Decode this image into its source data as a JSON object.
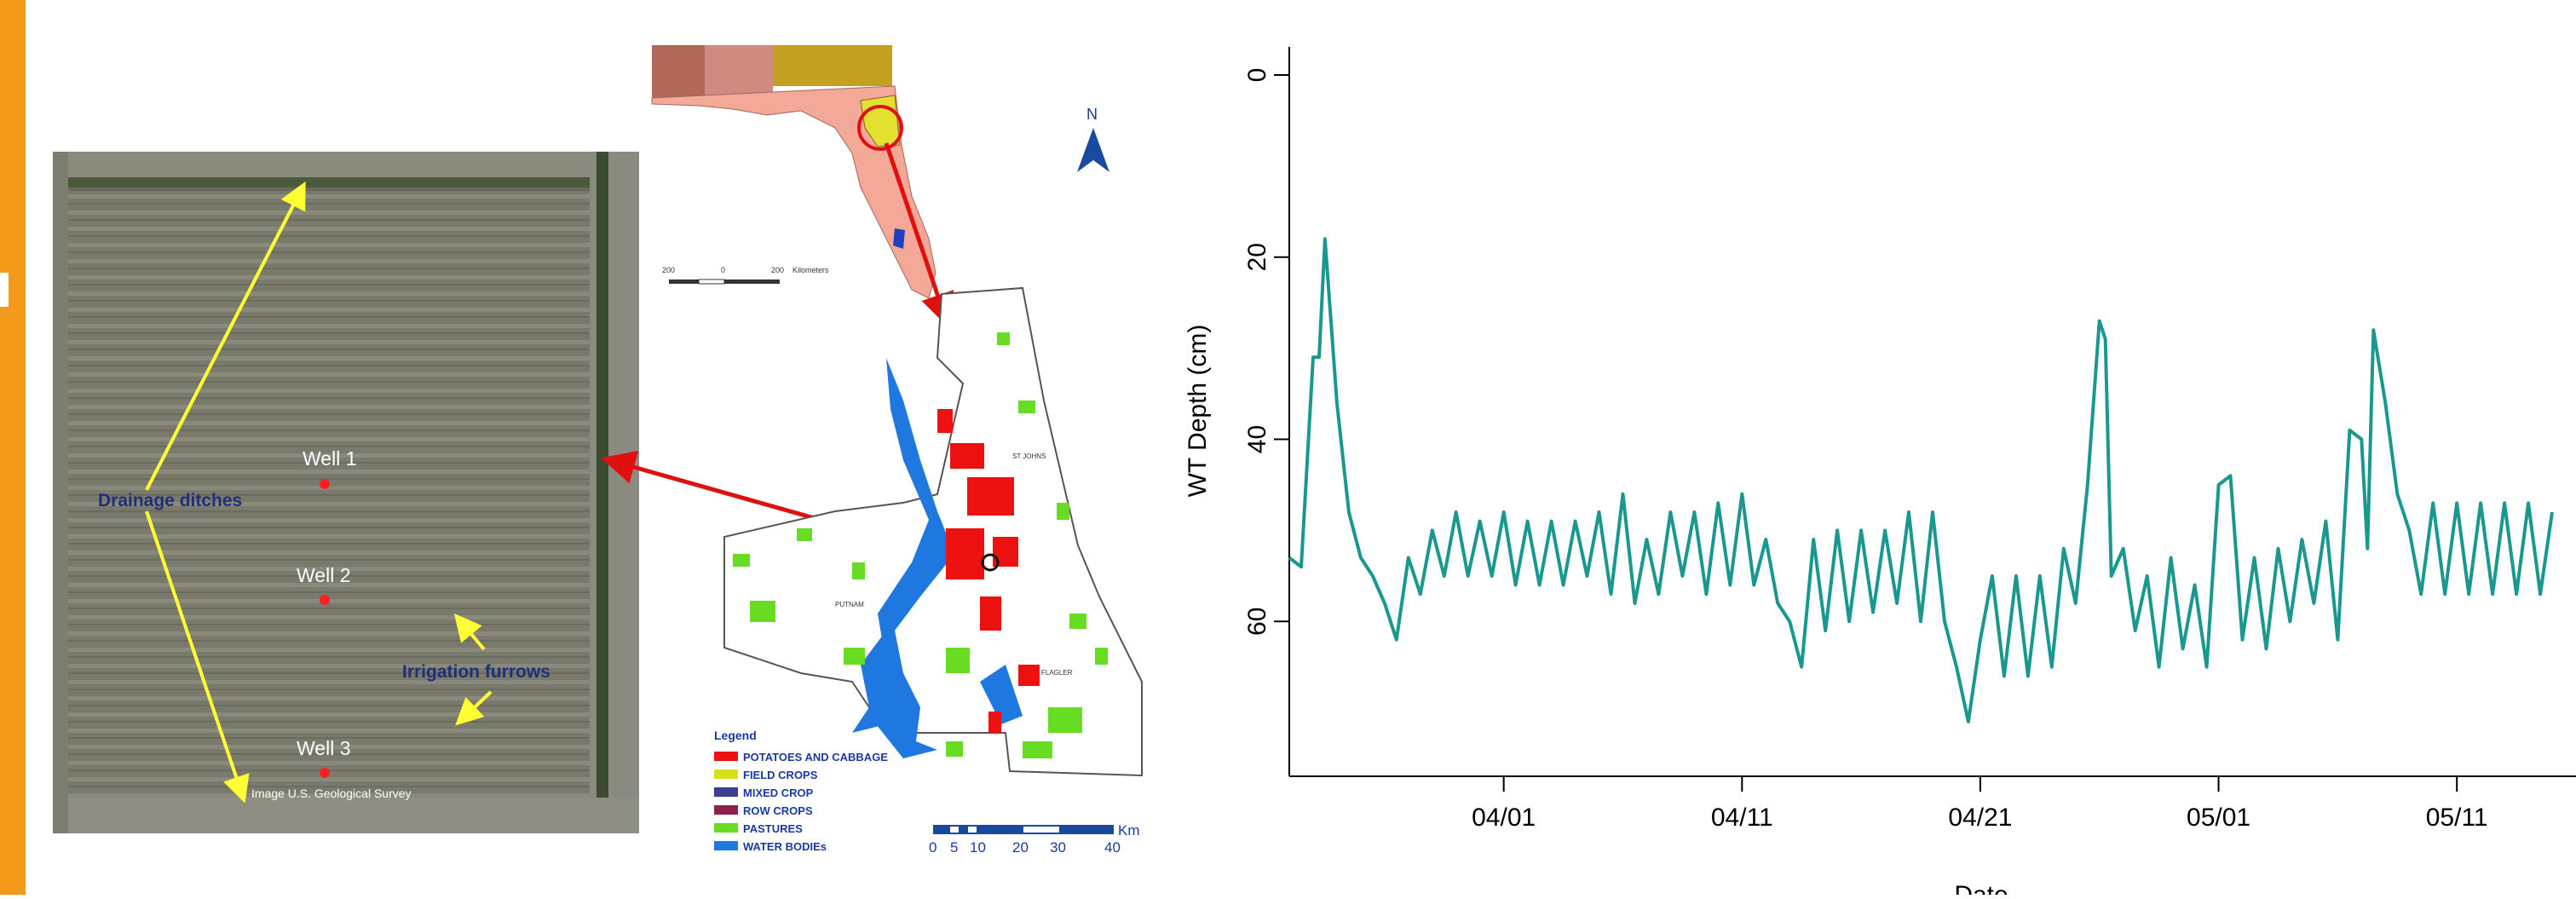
{
  "colors": {
    "accent_bar": "#f39a1a",
    "series_line": "#1a9890",
    "arrow_red": "#e01010",
    "arrow_yellow": "#ffff33",
    "annotation_navy": "#1f2f7a",
    "well_dot": "#ff2020"
  },
  "aerial": {
    "wells": [
      "Well 1",
      "Well 2",
      "Well 3"
    ],
    "drainage_label": "Drainage ditches",
    "irrigation_label": "Irrigation furrows",
    "credit": "Image U.S. Geological Survey"
  },
  "map": {
    "north_label": "N",
    "state_scale_ticks": [
      "200",
      "0",
      "200"
    ],
    "state_scale_unit": "Kilometers",
    "county_labels": [
      "ST JOHNS",
      "PUTNAM",
      "FLAGLER"
    ],
    "legend_title": "Legend",
    "legend_items": [
      {
        "label": "POTATOES AND CABBAGE",
        "color": "#ee1111"
      },
      {
        "label": "FIELD CROPS",
        "color": "#d8e01a"
      },
      {
        "label": "MIXED CROP",
        "color": "#3b3f8f"
      },
      {
        "label": "ROW CROPS",
        "color": "#8e2050"
      },
      {
        "label": "PASTURES",
        "color": "#66dd22"
      },
      {
        "label": "WATER BODIEs",
        "color": "#1e78e0"
      }
    ],
    "scale_ticks": [
      "0",
      "5",
      "10",
      "20",
      "30",
      "40"
    ],
    "scale_unit": "Km"
  },
  "chart_data": {
    "type": "line",
    "title": "",
    "xlabel": "Date",
    "ylabel": "WT Depth (cm)",
    "x_range": [
      "2010-03-23",
      "2010-05-15"
    ],
    "x_ticks": [
      "04/01",
      "04/11",
      "04/21",
      "05/01",
      "05/11"
    ],
    "x_tick_dates": [
      "2010-04-01",
      "2010-04-11",
      "2010-04-21",
      "2010-05-01",
      "2010-05-11"
    ],
    "ylim": [
      0,
      77
    ],
    "y_inverted": true,
    "y_ticks": [
      0,
      20,
      40,
      60
    ],
    "grid": false,
    "series": [
      {
        "x": [
          "2010-03-23T00:00",
          "2010-03-23T12:00",
          "2010-03-24T00:00",
          "2010-03-24T06:00",
          "2010-03-24T12:00",
          "2010-03-25T00:00",
          "2010-03-25T06:00",
          "2010-03-25T12:00",
          "2010-03-26T00:00",
          "2010-03-26T12:00",
          "2010-03-27T00:00",
          "2010-03-27T12:00",
          "2010-03-28T00:00",
          "2010-03-28T12:00",
          "2010-03-29T00:00",
          "2010-03-29T12:00",
          "2010-03-30T00:00",
          "2010-03-30T12:00",
          "2010-03-31T00:00",
          "2010-03-31T12:00",
          "2010-04-01T00:00",
          "2010-04-01T12:00",
          "2010-04-02T00:00",
          "2010-04-02T12:00",
          "2010-04-03T00:00",
          "2010-04-03T12:00",
          "2010-04-04T00:00",
          "2010-04-04T12:00",
          "2010-04-05T00:00",
          "2010-04-05T12:00",
          "2010-04-06T00:00",
          "2010-04-06T12:00",
          "2010-04-07T00:00",
          "2010-04-07T12:00",
          "2010-04-08T00:00",
          "2010-04-08T12:00",
          "2010-04-09T00:00",
          "2010-04-09T12:00",
          "2010-04-10T00:00",
          "2010-04-10T12:00",
          "2010-04-11T00:00",
          "2010-04-11T12:00",
          "2010-04-12T00:00",
          "2010-04-12T12:00",
          "2010-04-13T00:00",
          "2010-04-13T12:00",
          "2010-04-14T00:00",
          "2010-04-14T12:00",
          "2010-04-15T00:00",
          "2010-04-15T12:00",
          "2010-04-16T00:00",
          "2010-04-16T12:00",
          "2010-04-17T00:00",
          "2010-04-17T12:00",
          "2010-04-18T00:00",
          "2010-04-18T12:00",
          "2010-04-19T00:00",
          "2010-04-19T12:00",
          "2010-04-20T00:00",
          "2010-04-20T12:00",
          "2010-04-21T00:00",
          "2010-04-21T12:00",
          "2010-04-22T00:00",
          "2010-04-22T12:00",
          "2010-04-23T00:00",
          "2010-04-23T12:00",
          "2010-04-24T00:00",
          "2010-04-24T12:00",
          "2010-04-25T00:00",
          "2010-04-25T12:00",
          "2010-04-26T00:00",
          "2010-04-26T06:00",
          "2010-04-26T12:00",
          "2010-04-27T00:00",
          "2010-04-27T12:00",
          "2010-04-28T00:00",
          "2010-04-28T12:00",
          "2010-04-29T00:00",
          "2010-04-29T12:00",
          "2010-04-30T00:00",
          "2010-04-30T12:00",
          "2010-05-01T00:00",
          "2010-05-01T12:00",
          "2010-05-02T00:00",
          "2010-05-02T12:00",
          "2010-05-03T00:00",
          "2010-05-03T12:00",
          "2010-05-04T00:00",
          "2010-05-04T12:00",
          "2010-05-05T00:00",
          "2010-05-05T12:00",
          "2010-05-06T00:00",
          "2010-05-06T12:00",
          "2010-05-07T00:00",
          "2010-05-07T06:00",
          "2010-05-07T12:00",
          "2010-05-08T00:00",
          "2010-05-08T12:00",
          "2010-05-09T00:00",
          "2010-05-09T12:00",
          "2010-05-10T00:00",
          "2010-05-10T12:00",
          "2010-05-11T00:00",
          "2010-05-11T12:00",
          "2010-05-12T00:00",
          "2010-05-12T12:00",
          "2010-05-13T00:00",
          "2010-05-13T12:00",
          "2010-05-14T00:00",
          "2010-05-14T12:00",
          "2010-05-15T00:00"
        ],
        "y": [
          53,
          54,
          31,
          31,
          18,
          36,
          42,
          48,
          53,
          55,
          58,
          62,
          53,
          57,
          50,
          55,
          48,
          55,
          49,
          55,
          48,
          56,
          49,
          56,
          49,
          56,
          49,
          55,
          48,
          57,
          46,
          58,
          51,
          57,
          48,
          55,
          48,
          57,
          47,
          56,
          46,
          56,
          51,
          58,
          60,
          65,
          51,
          61,
          50,
          60,
          50,
          59,
          50,
          58,
          48,
          60,
          48,
          60,
          65,
          71,
          62,
          55,
          66,
          55,
          66,
          55,
          65,
          52,
          58,
          45,
          27,
          29,
          55,
          52,
          61,
          55,
          65,
          53,
          63,
          56,
          65,
          45,
          44,
          62,
          53,
          63,
          52,
          60,
          51,
          58,
          49,
          62,
          39,
          40,
          52,
          28,
          36,
          46,
          50,
          57,
          47,
          57,
          47,
          57,
          47,
          57,
          47,
          57,
          47,
          57,
          48
        ]
      }
    ]
  }
}
